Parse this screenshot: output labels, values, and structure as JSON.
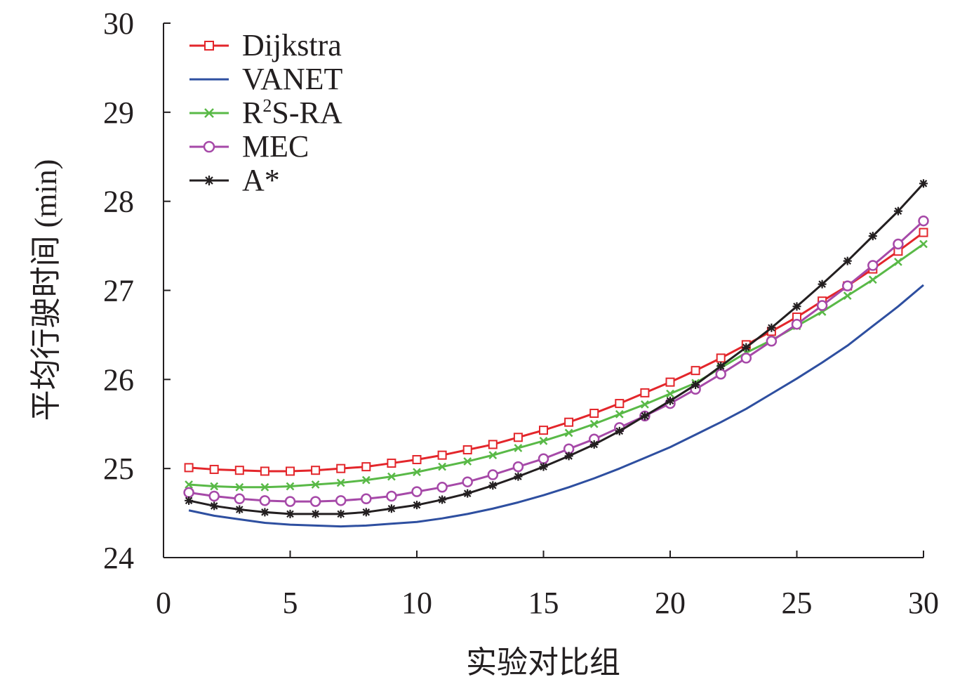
{
  "chart_data": {
    "type": "line",
    "title": "",
    "xlabel": "实验对比组",
    "ylabel": "平均行驶时间 (min)",
    "xlim": [
      0,
      30
    ],
    "ylim": [
      24,
      30
    ],
    "xticks": [
      0,
      5,
      10,
      15,
      20,
      25,
      30
    ],
    "yticks": [
      24,
      25,
      26,
      27,
      28,
      29,
      30
    ],
    "grid": false,
    "legend_position": "top-left",
    "x": [
      1,
      2,
      3,
      4,
      5,
      6,
      7,
      8,
      9,
      10,
      11,
      12,
      13,
      14,
      15,
      16,
      17,
      18,
      19,
      20,
      21,
      22,
      23,
      24,
      25,
      26,
      27,
      28,
      29,
      30
    ],
    "series": [
      {
        "name": "Dijkstra",
        "legend_label": "Dijkstra",
        "color": "#e3262b",
        "marker": "square",
        "values": [
          25.01,
          24.99,
          24.98,
          24.97,
          24.97,
          24.98,
          25.0,
          25.02,
          25.06,
          25.1,
          25.15,
          25.21,
          25.27,
          25.35,
          25.43,
          25.52,
          25.62,
          25.73,
          25.85,
          25.97,
          26.1,
          26.24,
          26.39,
          26.54,
          26.7,
          26.88,
          27.05,
          27.24,
          27.44,
          27.65
        ]
      },
      {
        "name": "VANET",
        "legend_label": "VANET",
        "color": "#2e4fa0",
        "marker": "none",
        "values": [
          24.53,
          24.47,
          24.43,
          24.39,
          24.37,
          24.36,
          24.35,
          24.36,
          24.38,
          24.4,
          24.44,
          24.49,
          24.55,
          24.62,
          24.7,
          24.79,
          24.89,
          25.0,
          25.12,
          25.24,
          25.38,
          25.52,
          25.67,
          25.84,
          26.01,
          26.19,
          26.38,
          26.6,
          26.82,
          27.06
        ]
      },
      {
        "name": "R2S-RA",
        "legend_label_main": "R",
        "legend_label_sup": "2",
        "legend_label_rest": "S-RA",
        "color": "#59b947",
        "marker": "x",
        "values": [
          24.82,
          24.8,
          24.79,
          24.79,
          24.8,
          24.82,
          24.84,
          24.87,
          24.91,
          24.96,
          25.02,
          25.08,
          25.15,
          25.23,
          25.31,
          25.4,
          25.5,
          25.61,
          25.72,
          25.84,
          25.96,
          26.13,
          26.3,
          26.44,
          26.6,
          26.76,
          26.94,
          27.12,
          27.32,
          27.52
        ]
      },
      {
        "name": "MEC",
        "legend_label": "MEC",
        "color": "#a649a8",
        "marker": "circle",
        "values": [
          24.73,
          24.69,
          24.66,
          24.64,
          24.63,
          24.63,
          24.64,
          24.66,
          24.69,
          24.74,
          24.79,
          24.85,
          24.93,
          25.02,
          25.11,
          25.22,
          25.33,
          25.46,
          25.59,
          25.73,
          25.89,
          26.06,
          26.24,
          26.43,
          26.62,
          26.83,
          27.05,
          27.28,
          27.52,
          27.78
        ]
      },
      {
        "name": "A*",
        "legend_label": "A*",
        "color": "#231f20",
        "marker": "asterisk",
        "values": [
          24.64,
          24.58,
          24.54,
          24.51,
          24.49,
          24.49,
          24.49,
          24.51,
          24.55,
          24.59,
          24.65,
          24.72,
          24.81,
          24.91,
          25.02,
          25.14,
          25.27,
          25.42,
          25.59,
          25.76,
          25.94,
          26.15,
          26.36,
          26.58,
          26.82,
          27.07,
          27.33,
          27.61,
          27.89,
          28.2
        ]
      }
    ]
  }
}
